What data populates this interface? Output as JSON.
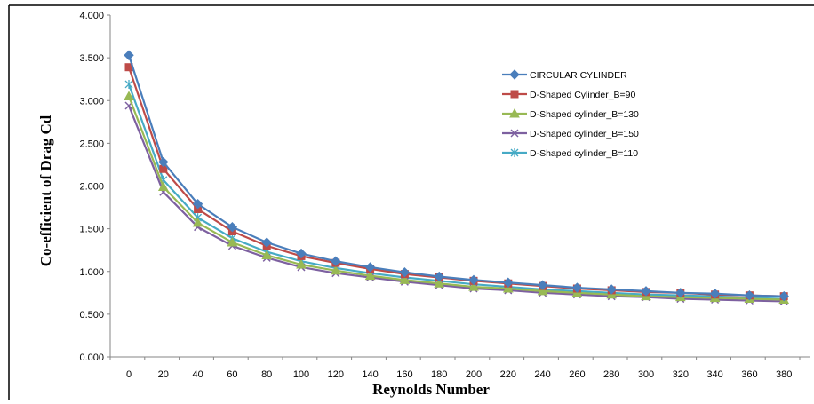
{
  "chart_data": {
    "type": "line",
    "xlabel": "Reynolds Number",
    "ylabel": "Co-efficient of Drag Cd",
    "ylim": [
      0,
      4
    ],
    "yticks": [
      "0.000",
      "0.500",
      "1.000",
      "1.500",
      "2.000",
      "2.500",
      "3.000",
      "3.500",
      "4.000"
    ],
    "categories": [
      "0",
      "20",
      "40",
      "60",
      "80",
      "100",
      "120",
      "140",
      "160",
      "180",
      "200",
      "220",
      "240",
      "260",
      "280",
      "300",
      "320",
      "340",
      "360",
      "380"
    ],
    "legend_position": "right",
    "grid": false,
    "series": [
      {
        "name": "CIRCULAR CYLINDER",
        "color": "#4a7ebb",
        "marker": "diamond",
        "values": [
          3.53,
          2.28,
          1.79,
          1.52,
          1.34,
          1.21,
          1.12,
          1.05,
          0.99,
          0.94,
          0.9,
          0.87,
          0.84,
          0.81,
          0.79,
          0.77,
          0.75,
          0.74,
          0.72,
          0.71
        ]
      },
      {
        "name": "D-Shaped Cylinder_B=90",
        "color": "#be4b48",
        "marker": "square",
        "values": [
          3.39,
          2.2,
          1.73,
          1.47,
          1.3,
          1.18,
          1.1,
          1.03,
          0.97,
          0.93,
          0.89,
          0.86,
          0.83,
          0.8,
          0.78,
          0.76,
          0.75,
          0.73,
          0.72,
          0.71
        ]
      },
      {
        "name": "D-Shaped cylinder_B=130",
        "color": "#98b954",
        "marker": "triangle",
        "values": [
          3.05,
          1.99,
          1.57,
          1.34,
          1.19,
          1.08,
          1.01,
          0.95,
          0.9,
          0.86,
          0.82,
          0.8,
          0.77,
          0.75,
          0.73,
          0.71,
          0.7,
          0.69,
          0.68,
          0.67
        ]
      },
      {
        "name": "D-Shaped cylinder_B=150",
        "color": "#7d60a0",
        "marker": "x",
        "values": [
          2.94,
          1.93,
          1.52,
          1.3,
          1.16,
          1.05,
          0.98,
          0.93,
          0.88,
          0.84,
          0.8,
          0.78,
          0.75,
          0.73,
          0.71,
          0.7,
          0.68,
          0.67,
          0.66,
          0.65
        ]
      },
      {
        "name": "D-Shaped cylinder_B=110",
        "color": "#46aac5",
        "marker": "star",
        "values": [
          3.19,
          2.07,
          1.63,
          1.39,
          1.23,
          1.12,
          1.04,
          0.98,
          0.93,
          0.89,
          0.85,
          0.82,
          0.79,
          0.77,
          0.75,
          0.73,
          0.72,
          0.71,
          0.69,
          0.68
        ]
      }
    ]
  }
}
